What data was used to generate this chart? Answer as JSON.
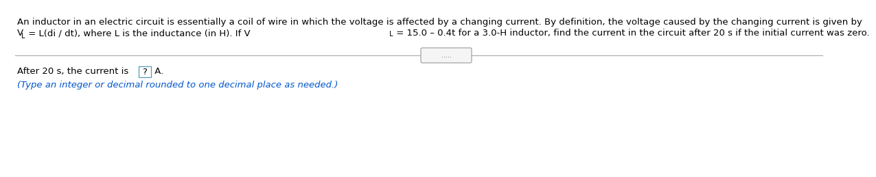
{
  "bg_color": "#ffffff",
  "line1": "An inductor in an electric circuit is essentially a coil of wire in which the voltage is affected by a changing current. By definition, the voltage caused by the changing current is given by",
  "line2_seg1": "V",
  "line2_sub1": "L",
  "line2_seg2": " = L(di / dt), where L is the inductance (in H). If V",
  "line2_sub2": "L",
  "line2_seg3": " = 15.0 – 0.4t for a 3.0-H inductor, find the current in the circuit after 20 s if the initial current was zero.",
  "divider_dots": ".....",
  "answer_prefix": "After 20 s, the current is ",
  "answer_boxed": "?",
  "answer_suffix": " A.",
  "hint_text": "(Type an integer or decimal rounded to one decimal place as needed.)",
  "text_color": "#000000",
  "hint_color": "#0055cc",
  "box_edge_color": "#5599bb",
  "divider_color": "#aaaaaa",
  "dots_box_fill": "#f5f5f5",
  "dots_box_edge": "#999999",
  "font_size": 9.5,
  "hint_italic": true
}
